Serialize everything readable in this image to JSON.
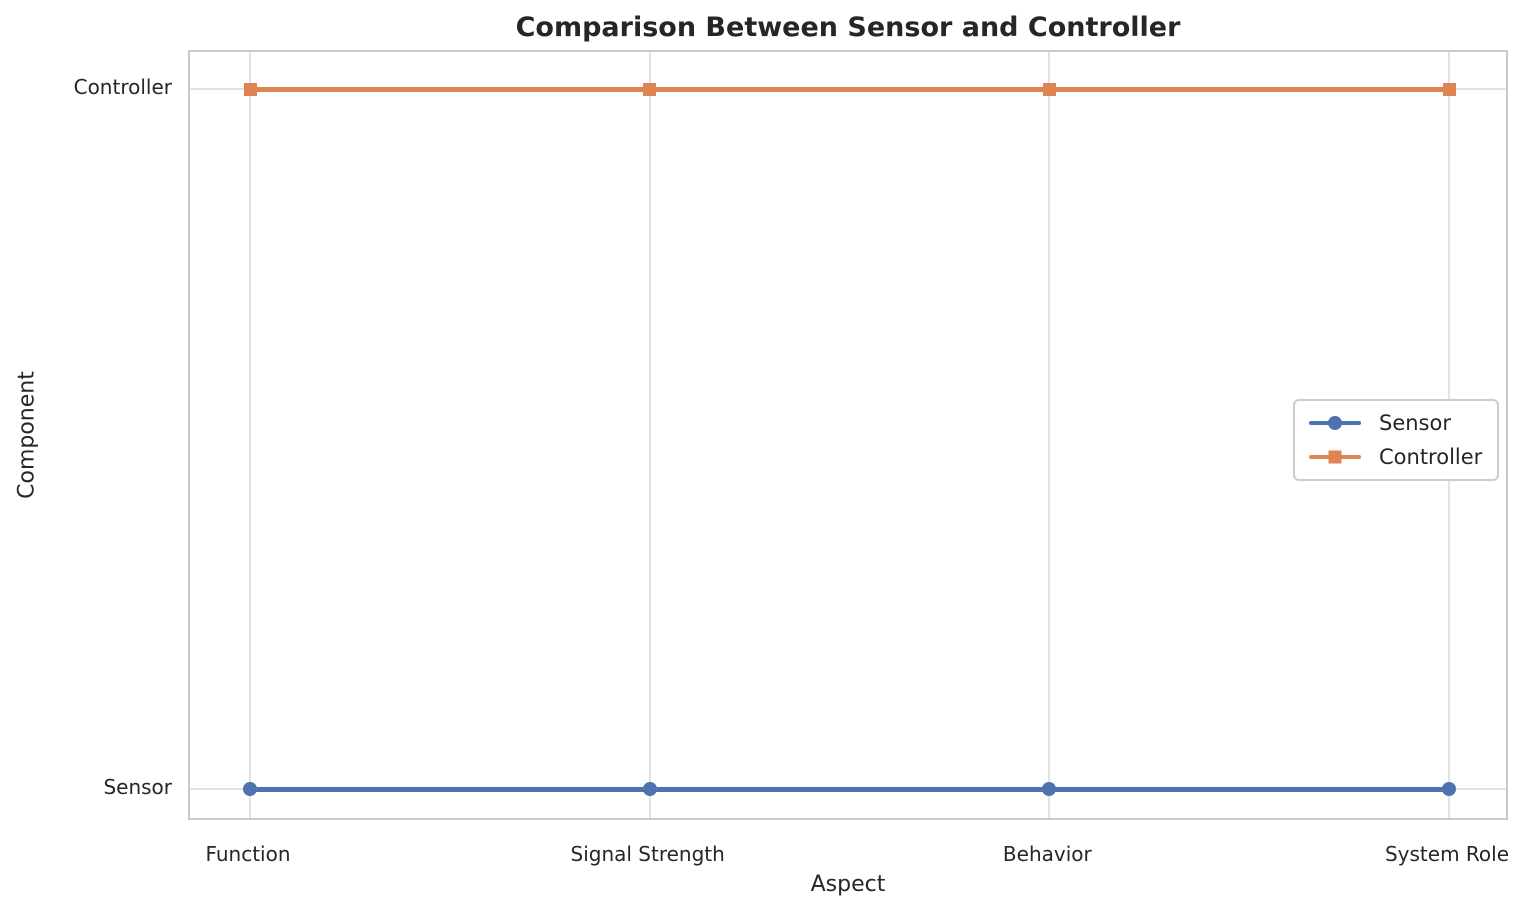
{
  "chart_data": {
    "type": "line",
    "title": "Comparison Between Sensor and Controller",
    "xlabel": "Aspect",
    "ylabel": "Component",
    "categories": [
      "Function",
      "Signal Strength",
      "Behavior",
      "System Role"
    ],
    "y_categories": [
      "Sensor",
      "Controller"
    ],
    "series": [
      {
        "name": "Sensor",
        "marker": "circle",
        "color": "#4C72B0",
        "values": [
          "Sensor",
          "Sensor",
          "Sensor",
          "Sensor"
        ]
      },
      {
        "name": "Controller",
        "marker": "square",
        "color": "#DD8452",
        "values": [
          "Controller",
          "Controller",
          "Controller",
          "Controller"
        ]
      }
    ],
    "grid": true,
    "legend_position": "center right",
    "background_color": "#ffffff",
    "grid_color": "#e2e2e2",
    "text_color": "#262626"
  }
}
